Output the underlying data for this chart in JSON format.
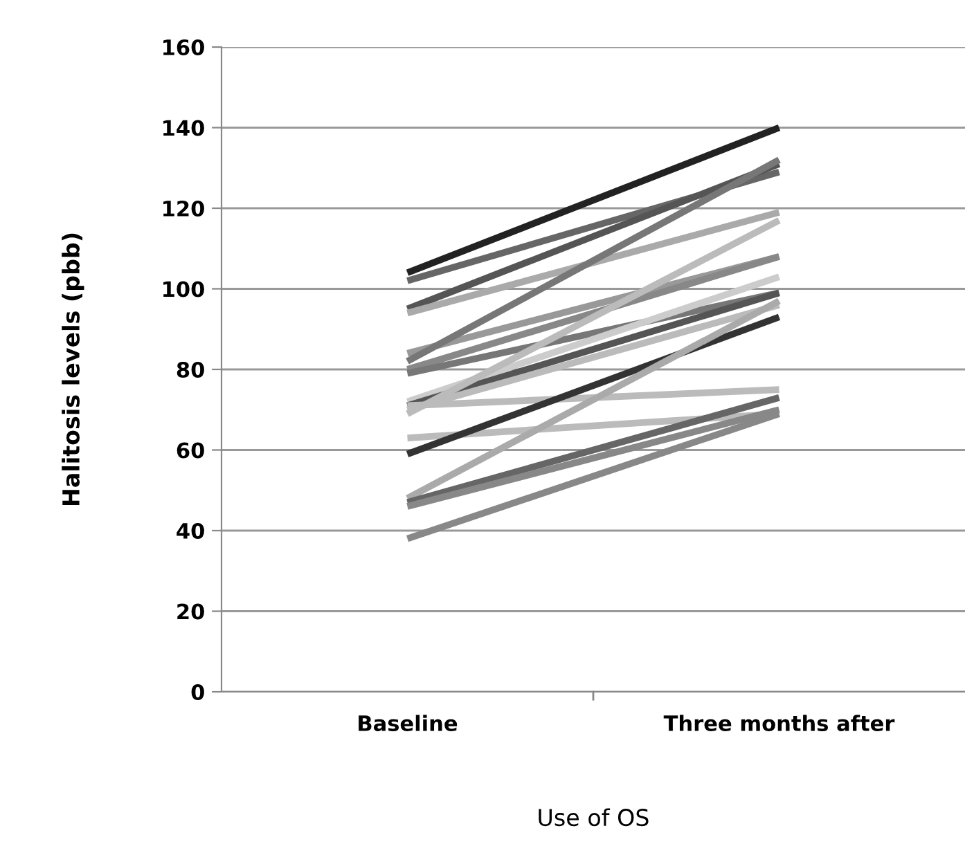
{
  "chart_data": {
    "type": "line",
    "xlabel": "Use of OS",
    "ylabel": "Halitosis levels (pbb)",
    "categories": [
      "Baseline",
      "Three months after"
    ],
    "series": [
      {
        "color": "#222222",
        "values": [
          104,
          140
        ]
      },
      {
        "color": "#666666",
        "values": [
          102,
          129
        ]
      },
      {
        "color": "#555555",
        "values": [
          95,
          131
        ]
      },
      {
        "color": "#aaaaaa",
        "values": [
          94,
          119
        ]
      },
      {
        "color": "#999999",
        "values": [
          84,
          108
        ]
      },
      {
        "color": "#777777",
        "values": [
          82,
          132
        ]
      },
      {
        "color": "#888888",
        "values": [
          80,
          108
        ]
      },
      {
        "color": "#777777",
        "values": [
          79,
          99
        ]
      },
      {
        "color": "#cccccc",
        "values": [
          72,
          103
        ]
      },
      {
        "color": "#555555",
        "values": [
          71,
          99
        ]
      },
      {
        "color": "#bbbbbb",
        "values": [
          70,
          96
        ]
      },
      {
        "color": "#bbbbbb",
        "values": [
          69,
          117
        ]
      },
      {
        "color": "#bbbbbb",
        "values": [
          71,
          75
        ]
      },
      {
        "color": "#bbbbbb",
        "values": [
          63,
          69
        ]
      },
      {
        "color": "#333333",
        "values": [
          59,
          93
        ]
      },
      {
        "color": "#aaaaaa",
        "values": [
          48,
          97
        ]
      },
      {
        "color": "#666666",
        "values": [
          47,
          73
        ]
      },
      {
        "color": "#888888",
        "values": [
          46,
          70
        ]
      },
      {
        "color": "#888888",
        "values": [
          38,
          69
        ]
      }
    ],
    "ylim": [
      0,
      160
    ],
    "yticks": [
      0,
      20,
      40,
      60,
      80,
      100,
      120,
      140,
      160
    ],
    "grid": "y",
    "marker": "none",
    "line_style": "solid"
  }
}
